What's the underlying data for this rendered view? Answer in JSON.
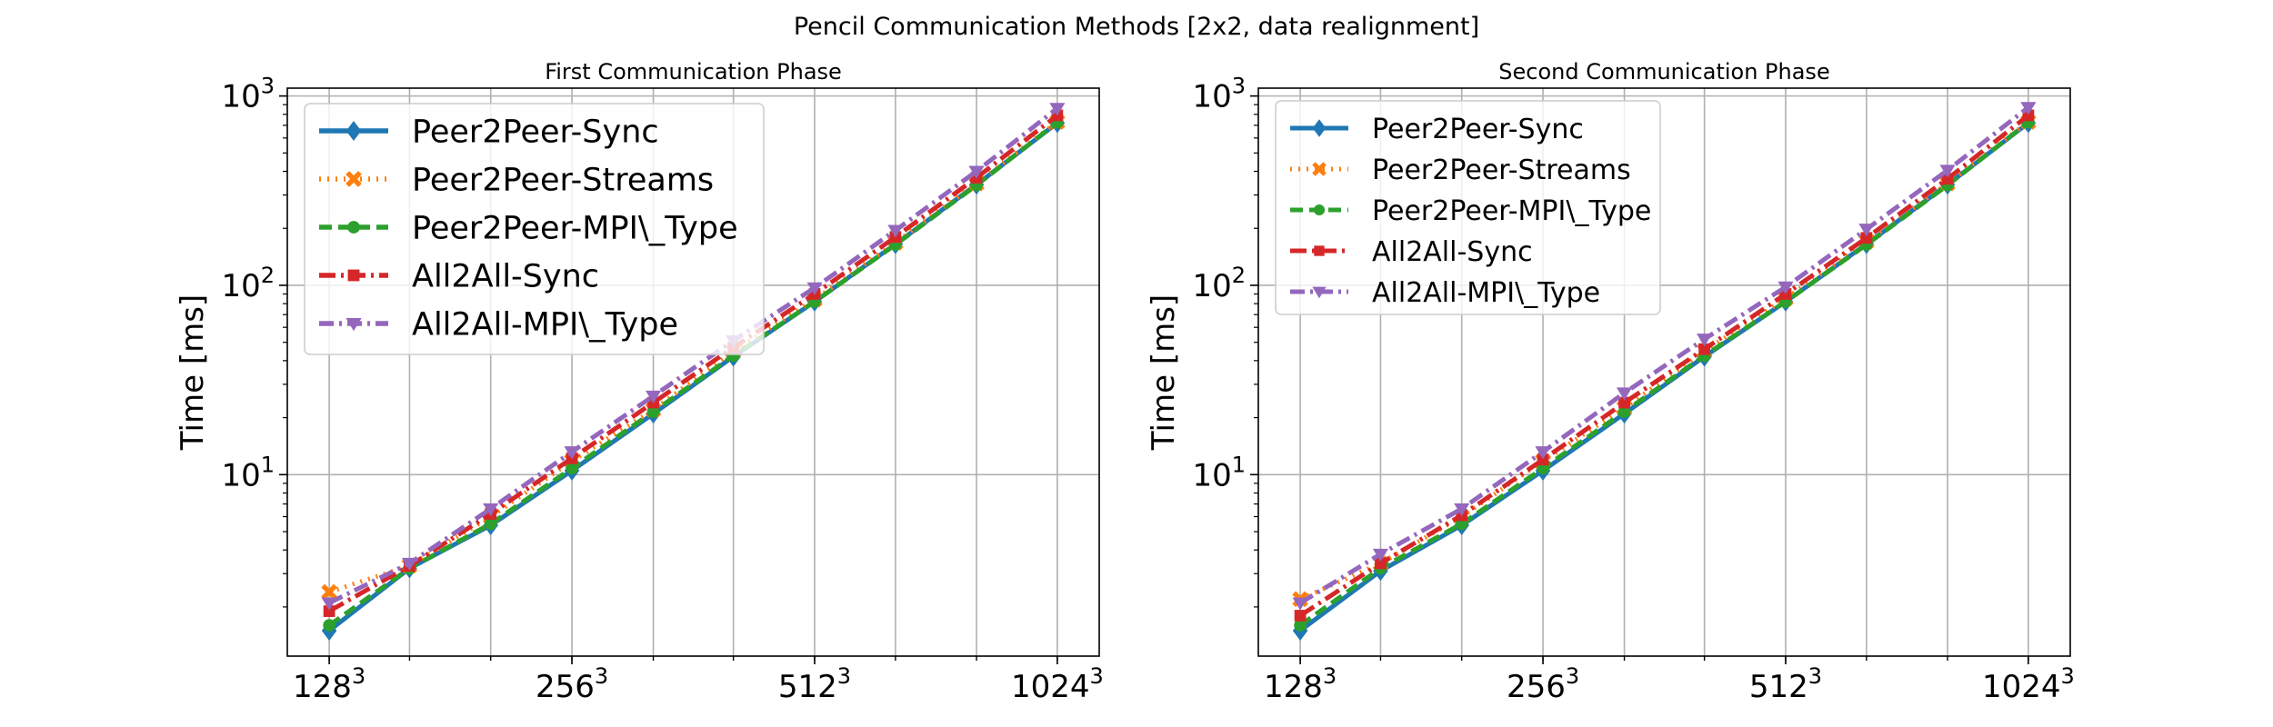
{
  "figure": {
    "suptitle": "Pencil Communication Methods [2x2, data realignment]"
  },
  "chart_data": [
    {
      "type": "line",
      "title": "First Communication Phase",
      "xlabel": "",
      "ylabel": "Time [ms]",
      "x": [
        128,
        161,
        203,
        256,
        323,
        406,
        512,
        645,
        813,
        1024
      ],
      "xscale": "log",
      "xticks": [
        {
          "base": "128",
          "exp": "3"
        },
        {
          "base": "256",
          "exp": "3"
        },
        {
          "base": "512",
          "exp": "3"
        },
        {
          "base": "1024",
          "exp": "3"
        }
      ],
      "yscale": "log",
      "ylim": [
        1.1,
        1100
      ],
      "yticks": [
        {
          "base": "10",
          "exp": "1"
        },
        {
          "base": "10",
          "exp": "2"
        },
        {
          "base": "10",
          "exp": "3"
        }
      ],
      "grid": true,
      "legend_location": "upper left",
      "series": [
        {
          "name": "Peer2Peer-Sync",
          "values": [
            1.5,
            3.2,
            5.4,
            10.5,
            21,
            42,
            82,
            165,
            340,
            720
          ]
        },
        {
          "name": "Peer2Peer-Streams",
          "values": [
            2.4,
            3.3,
            6.0,
            11.8,
            22,
            45,
            84,
            168,
            345,
            730
          ]
        },
        {
          "name": "Peer2Peer-MPI\\_Type",
          "values": [
            1.6,
            3.2,
            5.5,
            10.8,
            21.5,
            42.5,
            82,
            164,
            338,
            725
          ]
        },
        {
          "name": "All2All-Sync",
          "values": [
            1.9,
            3.3,
            6.2,
            12.2,
            24,
            47,
            90,
            180,
            370,
            790
          ]
        },
        {
          "name": "All2All-MPI\\_Type",
          "values": [
            2.1,
            3.4,
            6.6,
            13.2,
            26,
            51,
            97,
            195,
            400,
            860
          ]
        }
      ]
    },
    {
      "type": "line",
      "title": "Second Communication Phase",
      "xlabel": "",
      "ylabel": "Time [ms]",
      "x": [
        128,
        161,
        203,
        256,
        323,
        406,
        512,
        645,
        813,
        1024
      ],
      "xscale": "log",
      "xticks": [
        {
          "base": "128",
          "exp": "3"
        },
        {
          "base": "256",
          "exp": "3"
        },
        {
          "base": "512",
          "exp": "3"
        },
        {
          "base": "1024",
          "exp": "3"
        }
      ],
      "yscale": "log",
      "ylim": [
        1.1,
        1100
      ],
      "yticks": [
        {
          "base": "10",
          "exp": "1"
        },
        {
          "base": "10",
          "exp": "2"
        },
        {
          "base": "10",
          "exp": "3"
        }
      ],
      "grid": true,
      "legend_location": "upper left",
      "series": [
        {
          "name": "Peer2Peer-Sync",
          "values": [
            1.5,
            3.1,
            5.4,
            10.5,
            21,
            42,
            82,
            165,
            340,
            720
          ]
        },
        {
          "name": "Peer2Peer-Streams",
          "values": [
            2.2,
            3.4,
            6.0,
            11.8,
            22.5,
            45,
            85,
            170,
            345,
            730
          ]
        },
        {
          "name": "Peer2Peer-MPI\\_Type",
          "values": [
            1.6,
            3.2,
            5.5,
            10.8,
            21.5,
            42.5,
            82,
            164,
            338,
            725
          ]
        },
        {
          "name": "All2All-Sync",
          "values": [
            1.8,
            3.4,
            6.1,
            12.0,
            24,
            46,
            90,
            178,
            365,
            790
          ]
        },
        {
          "name": "All2All-MPI\\_Type",
          "values": [
            2.1,
            3.8,
            6.6,
            13.2,
            27,
            52,
            98,
            198,
            405,
            870
          ]
        }
      ]
    }
  ],
  "styles": [
    {
      "color": "#1f77b4",
      "dash": "",
      "marker": "diamond"
    },
    {
      "color": "#ff7f0e",
      "dash": "2,7",
      "marker": "x"
    },
    {
      "color": "#2ca02c",
      "dash": "14,7",
      "marker": "circle"
    },
    {
      "color": "#d62728",
      "dash": "18,6,3,6",
      "marker": "square"
    },
    {
      "color": "#9467bd",
      "dash": "16,6,3,6",
      "marker": "triangle-down"
    }
  ]
}
